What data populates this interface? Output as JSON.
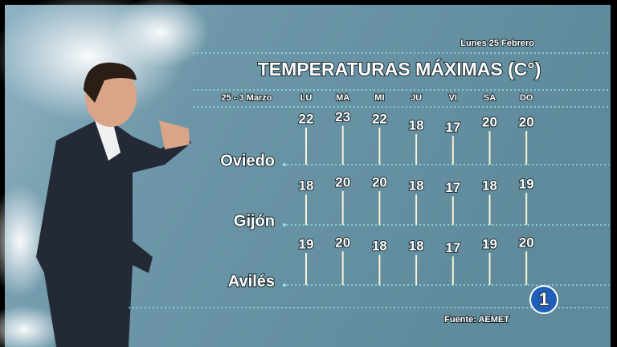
{
  "chart_data": {
    "type": "lollipop",
    "title": "TEMPERATURAS MÁXIMAS (C°)",
    "subtitle": "Lunes 25 Febrero",
    "period": "25 - 3 Marzo",
    "source": "Fuente: AEMET",
    "categories": [
      "LU",
      "MA",
      "MI",
      "JU",
      "VI",
      "SA",
      "DO"
    ],
    "color": "#f4f2d8",
    "series": [
      {
        "name": "Oviedo",
        "values": [
          22,
          23,
          22,
          18,
          17,
          20,
          20
        ]
      },
      {
        "name": "Gijón",
        "values": [
          18,
          20,
          20,
          18,
          17,
          18,
          19
        ]
      },
      {
        "name": "Avilés",
        "values": [
          19,
          20,
          18,
          18,
          17,
          19,
          20
        ]
      }
    ]
  },
  "logo": "1"
}
